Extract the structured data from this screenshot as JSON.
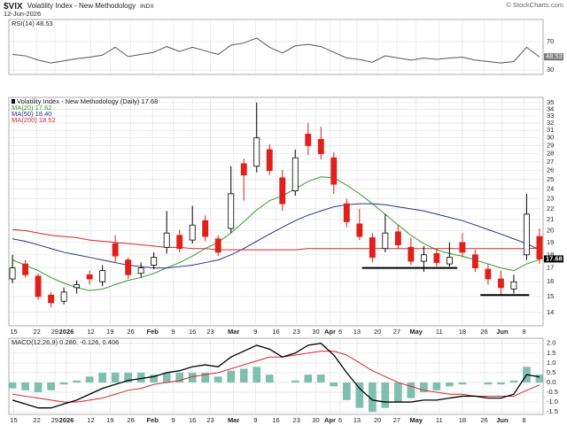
{
  "chart_data": {
    "type": "stock",
    "title": "$VIX",
    "subtitle": "Volatility Index - New Methodology",
    "exchange": "INDX",
    "date": "12-Jun-2026",
    "source": "© StockCharts.com",
    "xlim": [
      -0.28,
      41.28
    ],
    "xticks": [
      {
        "value": 0.1,
        "label": "15"
      },
      {
        "value": 1.9,
        "label": "22"
      },
      {
        "value": 3.3,
        "label": "29"
      },
      {
        "value": 4.2,
        "label": "2026"
      },
      {
        "value": 6.1,
        "label": "12"
      },
      {
        "value": 7.6,
        "label": "19"
      },
      {
        "value": 9.2,
        "label": "26"
      },
      {
        "value": 10.9,
        "label": "Feb"
      },
      {
        "value": 12.5,
        "label": "9"
      },
      {
        "value": 14.0,
        "label": "16"
      },
      {
        "value": 15.4,
        "label": "23"
      },
      {
        "value": 17.2,
        "label": "Mar"
      },
      {
        "value": 18.9,
        "label": "9"
      },
      {
        "value": 20.5,
        "label": "16"
      },
      {
        "value": 22.1,
        "label": "23"
      },
      {
        "value": 23.6,
        "label": "30"
      },
      {
        "value": 24.7,
        "label": "Apr"
      },
      {
        "value": 25.5,
        "label": "6"
      },
      {
        "value": 26.8,
        "label": "13"
      },
      {
        "value": 28.4,
        "label": "20"
      },
      {
        "value": 29.9,
        "label": "27"
      },
      {
        "value": 31.4,
        "label": "May"
      },
      {
        "value": 33.2,
        "label": "11"
      },
      {
        "value": 35.0,
        "label": "18"
      },
      {
        "value": 36.7,
        "label": "26"
      },
      {
        "value": 38.1,
        "label": "Jun"
      },
      {
        "value": 39.8,
        "label": "8"
      }
    ],
    "rsi": {
      "type": "line",
      "label": "RSI(14) 48.53",
      "color": "#555555",
      "ylim": [
        24,
        101
      ],
      "yticks": [
        30,
        70
      ],
      "values": [
        52,
        50,
        44,
        40,
        43,
        46,
        48,
        51,
        62,
        49,
        52,
        55,
        63,
        56,
        62,
        57,
        52,
        65,
        68,
        75,
        62,
        54,
        64,
        66,
        63,
        55,
        47,
        45,
        41,
        50,
        47,
        44,
        47,
        45,
        47,
        48,
        44,
        42,
        40,
        42,
        62,
        48.53
      ]
    },
    "price": {
      "type": "candlestick",
      "label": "Volatility Index - New Methodology (Daily) 17.68",
      "up_color": "#000000",
      "down_color": "#e0201b",
      "log": true,
      "grid": true,
      "ylim": [
        13.2,
        35.8
      ],
      "yticks": [
        14,
        15,
        16,
        17,
        18,
        19,
        20,
        21,
        22,
        23,
        24,
        25,
        26,
        27,
        28,
        29,
        30,
        31,
        32,
        33,
        34,
        35
      ],
      "ohlc": [
        [
          16.2,
          18.0,
          15.9,
          17.0
        ],
        [
          17.3,
          17.6,
          16.3,
          16.5
        ],
        [
          16.4,
          16.6,
          14.8,
          15.0
        ],
        [
          15.1,
          15.3,
          14.3,
          14.6
        ],
        [
          14.7,
          15.6,
          14.5,
          15.3
        ],
        [
          15.6,
          16.1,
          15.2,
          15.8
        ],
        [
          16.5,
          16.8,
          15.8,
          16.2
        ],
        [
          16.0,
          17.2,
          15.7,
          16.8
        ],
        [
          18.9,
          19.6,
          17.4,
          17.9
        ],
        [
          17.6,
          17.8,
          16.2,
          16.5
        ],
        [
          16.6,
          17.4,
          16.3,
          17.0
        ],
        [
          17.2,
          18.2,
          16.9,
          17.8
        ],
        [
          18.6,
          21.8,
          18.1,
          19.8
        ],
        [
          19.6,
          20.1,
          18.2,
          18.5
        ],
        [
          19.2,
          22.3,
          18.9,
          20.5
        ],
        [
          20.9,
          21.4,
          19.1,
          19.5
        ],
        [
          19.3,
          19.6,
          17.9,
          18.2
        ],
        [
          20.2,
          26.5,
          19.8,
          23.5
        ],
        [
          26.8,
          27.4,
          22.8,
          25.5
        ],
        [
          26.5,
          35.0,
          25.8,
          30.0
        ],
        [
          28.5,
          29.2,
          25.5,
          26.0
        ],
        [
          25.2,
          26.1,
          21.8,
          22.5
        ],
        [
          23.8,
          28.5,
          23.3,
          27.5
        ],
        [
          30.5,
          32.0,
          27.8,
          29.0
        ],
        [
          29.8,
          31.5,
          27.3,
          28.0
        ],
        [
          27.5,
          28.2,
          23.5,
          24.5
        ],
        [
          22.5,
          23.0,
          20.3,
          20.8
        ],
        [
          20.6,
          22.0,
          19.2,
          19.5
        ],
        [
          19.4,
          19.8,
          17.4,
          17.8
        ],
        [
          18.5,
          21.5,
          18.2,
          19.8
        ],
        [
          19.9,
          20.5,
          18.5,
          18.8
        ],
        [
          18.6,
          19.4,
          17.2,
          17.5
        ],
        [
          17.5,
          18.7,
          16.7,
          18.0
        ],
        [
          18.1,
          18.5,
          17.1,
          17.4
        ],
        [
          17.3,
          19.0,
          17.1,
          17.8
        ],
        [
          19.0,
          19.8,
          17.8,
          18.2
        ],
        [
          18.0,
          18.4,
          16.7,
          17.0
        ],
        [
          16.9,
          17.3,
          15.8,
          16.2
        ],
        [
          16.2,
          16.8,
          15.1,
          15.6
        ],
        [
          15.5,
          16.5,
          15.2,
          16.0
        ],
        [
          18.0,
          23.5,
          17.6,
          21.5
        ],
        [
          19.5,
          20.2,
          17.3,
          17.68
        ]
      ],
      "series": [
        {
          "name": "MA(20) 17.62",
          "color": "#2e9e24",
          "values": [
            17.6,
            17.2,
            16.8,
            16.3,
            15.9,
            15.6,
            15.4,
            15.5,
            15.8,
            16.1,
            16.3,
            16.6,
            17.0,
            17.4,
            17.9,
            18.5,
            19.0,
            19.8,
            20.8,
            21.9,
            22.8,
            23.3,
            24.0,
            24.8,
            25.3,
            25.2,
            24.4,
            23.5,
            22.5,
            21.5,
            20.5,
            19.6,
            18.9,
            18.4,
            18.1,
            17.9,
            17.6,
            17.3,
            17.0,
            16.8,
            17.3,
            17.62
          ]
        },
        {
          "name": "MA(50) 18.40",
          "color": "#27308f",
          "values": [
            19.3,
            19.1,
            18.8,
            18.5,
            18.2,
            18.0,
            17.8,
            17.6,
            17.4,
            17.2,
            17.1,
            17.0,
            17.0,
            17.1,
            17.2,
            17.4,
            17.6,
            18.0,
            18.5,
            19.1,
            19.7,
            20.3,
            20.9,
            21.4,
            21.8,
            22.2,
            22.4,
            22.5,
            22.5,
            22.4,
            22.2,
            22.0,
            21.8,
            21.5,
            21.2,
            20.9,
            20.5,
            20.1,
            19.7,
            19.3,
            18.9,
            18.4
          ]
        },
        {
          "name": "MA(200) 18.52",
          "color": "#d62728",
          "values": [
            20.1,
            20.0,
            19.8,
            19.6,
            19.5,
            19.4,
            19.2,
            19.1,
            19.0,
            18.9,
            18.8,
            18.7,
            18.6,
            18.6,
            18.5,
            18.5,
            18.4,
            18.4,
            18.4,
            18.4,
            18.4,
            18.4,
            18.4,
            18.5,
            18.5,
            18.5,
            18.5,
            18.5,
            18.5,
            18.5,
            18.5,
            18.5,
            18.5,
            18.5,
            18.5,
            18.5,
            18.5,
            18.5,
            18.5,
            18.5,
            18.5,
            18.52
          ]
        }
      ],
      "levels": [
        {
          "y": 17.0,
          "x": [
            27.2,
            34.6
          ]
        },
        {
          "y": 15.1,
          "x": [
            36.4,
            40.2
          ]
        }
      ]
    },
    "macd": {
      "type": "macd",
      "label": "MACD(12,26,9) 0.280, -0.126, 0.406",
      "ylim": [
        -1.63,
        2.26
      ],
      "yticks": [
        {
          "value": 2,
          "label": "2.0"
        },
        1.5,
        {
          "value": 1,
          "label": "1.0"
        },
        0.5,
        {
          "value": 0,
          "label": "0.0"
        },
        -0.5,
        {
          "value": -1,
          "label": "-1.0"
        },
        -1.5
      ],
      "macd": {
        "color": "#000000",
        "values": [
          -0.9,
          -1.1,
          -1.3,
          -1.3,
          -1.1,
          -0.9,
          -0.6,
          -0.3,
          -0.1,
          0.1,
          0.2,
          0.3,
          0.5,
          0.6,
          0.8,
          0.9,
          0.8,
          1.3,
          1.6,
          1.9,
          1.7,
          1.3,
          1.5,
          1.9,
          2.0,
          1.4,
          0.5,
          -0.3,
          -0.9,
          -1.0,
          -1.0,
          -1.0,
          -0.9,
          -0.9,
          -0.8,
          -0.7,
          -0.7,
          -0.8,
          -0.8,
          -0.6,
          0.4,
          0.28
        ]
      },
      "signal": {
        "color": "#d62728",
        "values": [
          -0.6,
          -0.7,
          -0.8,
          -0.9,
          -1.0,
          -1.0,
          -0.9,
          -0.8,
          -0.6,
          -0.4,
          -0.3,
          -0.1,
          0.0,
          0.1,
          0.3,
          0.4,
          0.5,
          0.7,
          0.9,
          1.1,
          1.3,
          1.3,
          1.4,
          1.5,
          1.6,
          1.6,
          1.4,
          1.0,
          0.6,
          0.3,
          0.0,
          -0.2,
          -0.4,
          -0.5,
          -0.6,
          -0.6,
          -0.7,
          -0.7,
          -0.7,
          -0.7,
          -0.4,
          -0.126
        ]
      },
      "histogram": {
        "color": "#7fbfae",
        "values": [
          -0.3,
          -0.4,
          -0.5,
          -0.4,
          -0.1,
          0.1,
          0.3,
          0.5,
          0.5,
          0.5,
          0.5,
          0.4,
          0.5,
          0.5,
          0.5,
          0.5,
          0.3,
          0.6,
          0.7,
          0.8,
          0.4,
          0.0,
          0.1,
          0.4,
          0.4,
          -0.2,
          -0.9,
          -1.3,
          -1.5,
          -1.3,
          -1.0,
          -0.8,
          -0.5,
          -0.4,
          -0.2,
          -0.1,
          0.0,
          -0.1,
          -0.1,
          0.1,
          0.8,
          0.406
        ]
      }
    }
  }
}
